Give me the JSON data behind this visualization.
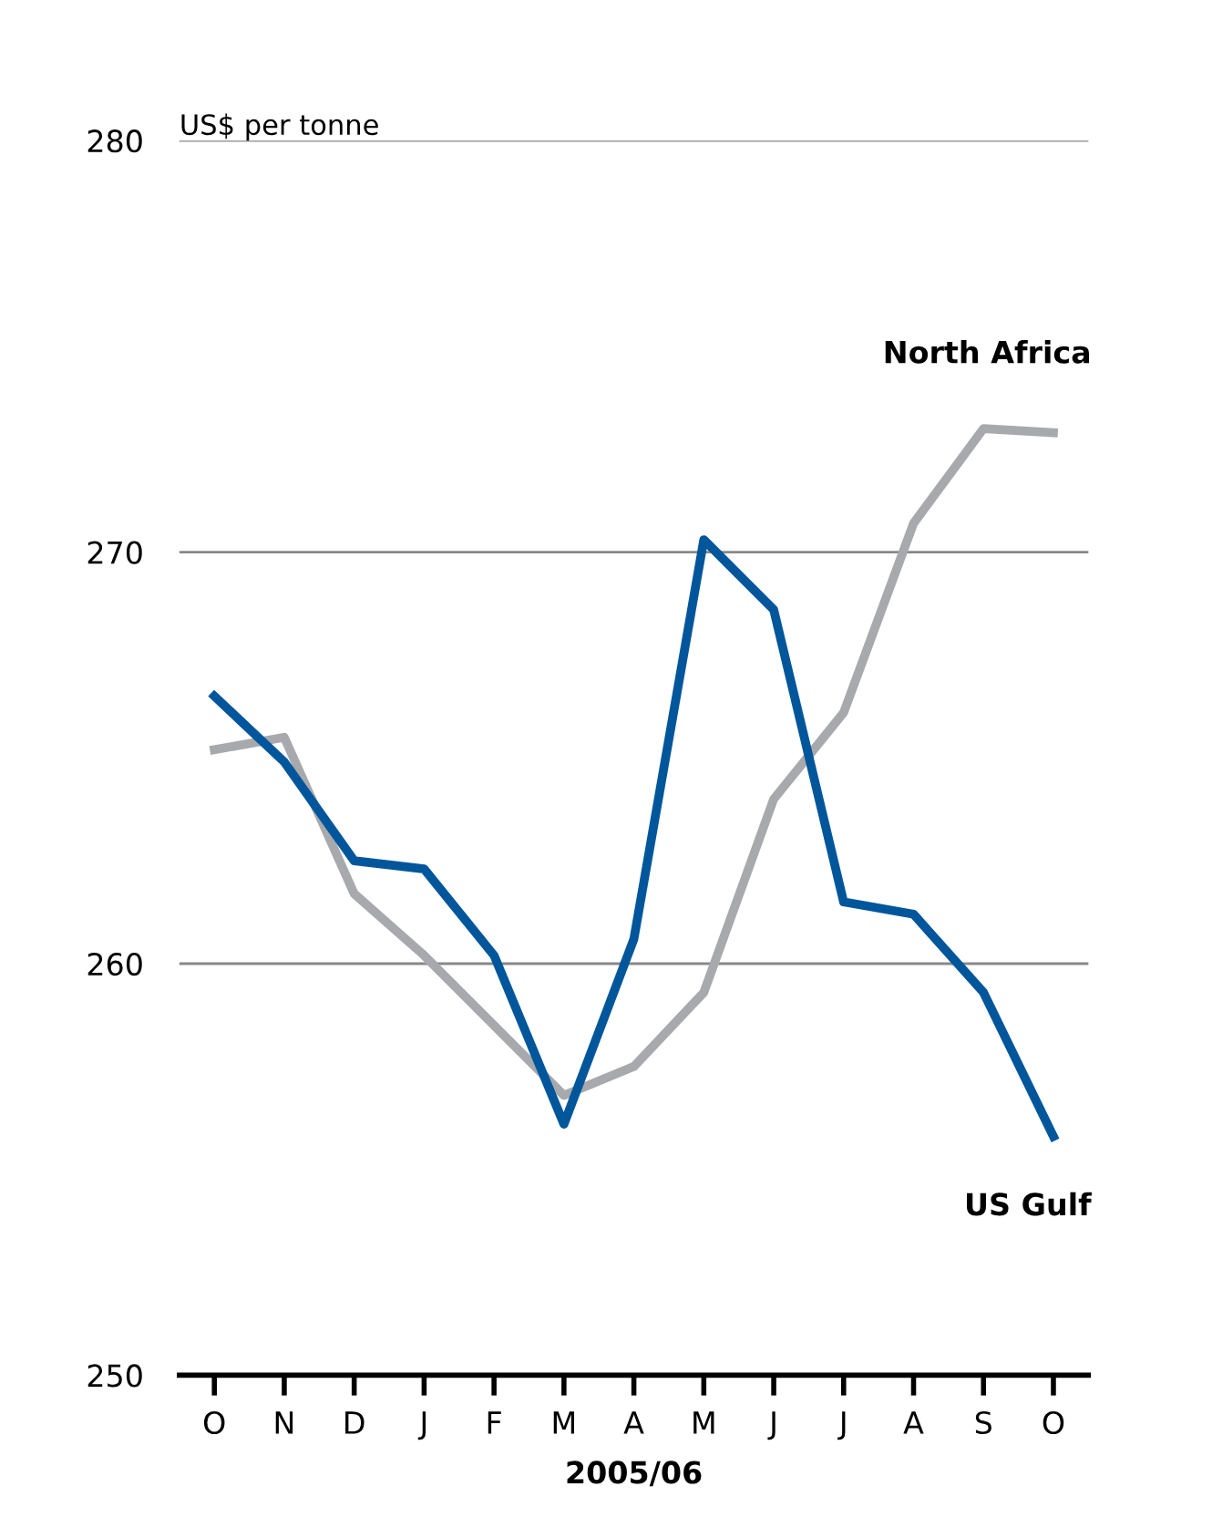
{
  "chart_data": {
    "type": "line",
    "ylabel": "US$ per tonne",
    "xlabel": "2005/06",
    "categories": [
      "O",
      "N",
      "D",
      "J",
      "F",
      "M",
      "A",
      "M",
      "J",
      "J",
      "A",
      "S",
      "O"
    ],
    "series": [
      {
        "name": "North Africa",
        "color": "#a7a9ac",
        "values": [
          265.2,
          265.5,
          261.7,
          260.2,
          258.5,
          256.8,
          257.5,
          259.3,
          264.0,
          266.1,
          270.7,
          273.0,
          272.9
        ]
      },
      {
        "name": "US Gulf",
        "color": "#00569b",
        "values": [
          266.5,
          264.9,
          262.5,
          262.3,
          260.2,
          256.1,
          260.6,
          270.3,
          268.6,
          261.5,
          261.2,
          259.3,
          255.8
        ]
      }
    ],
    "ylim": [
      250,
      280
    ],
    "yticks": [
      250,
      260,
      270,
      280
    ],
    "grid": "y",
    "legend": false,
    "marker": "none",
    "line_style": "solid"
  }
}
